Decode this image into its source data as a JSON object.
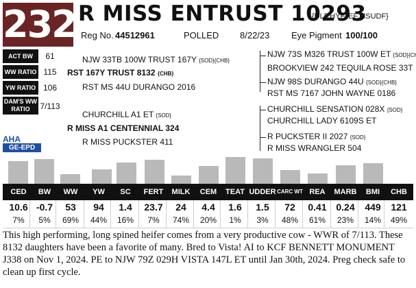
{
  "lot": "232",
  "name": "R MISS ENTRUST 10293",
  "codes": "{DLF,HYF,IEF,MSUDF}",
  "reg_label": "Reg No.",
  "reg_no": "44512961",
  "polled": "POLLED",
  "birth_date": "8/22/23",
  "eye_label": "Eye Pigment",
  "eye_value": "100/100",
  "side_stats": [
    {
      "label": "ACT BW",
      "value": "61"
    },
    {
      "label": "WW RATIO",
      "value": "115"
    },
    {
      "label": "YW RATIO",
      "value": "106"
    },
    {
      "label": "DAM'S WW RATIO",
      "value": "7/113"
    }
  ],
  "pedigree": {
    "sire_sire": "NJW 33TB 100W TRUST 167Y",
    "sire_sire_codes": "{SOD}{CHB}",
    "sire": "RST 167Y TRUST 8132",
    "sire_codes": "{CHB}",
    "sire_dam": "RST MS 44U DURANGO 2016",
    "dam_sire": "CHURCHILL A1 ET",
    "dam_sire_codes": "{SOD}",
    "dam": "R MISS A1 CENTENNIAL 324",
    "dam_dam": "R MISS PUCKSTER 411",
    "right": {
      "g1": "NJW 73S M326 TRUST 100W ET",
      "g1_codes": "{SOD}{CHB}",
      "g2": "BROOKVIEW 242 TEQUILA ROSE 33T",
      "g3": "NJW 98S DURANGO 44U",
      "g3_codes": "{SOD}{CHB}",
      "g4": "RST MS 7167 JOHN WAYNE 0186",
      "g5": "CHURCHILL SENSATION 028X",
      "g5_codes": "{SOD}",
      "g6": "CHURCHILL LADY 6109S ET",
      "g7": "R PUCKSTER II 2027",
      "g7_codes": "{SOD}",
      "g8": "R MISS WRANGLER 504"
    }
  },
  "logo": {
    "aha": "AHA",
    "ge": "GE-EPD"
  },
  "epd": [
    {
      "label": "CED",
      "value": "10.6",
      "pct": "7%"
    },
    {
      "label": "BW",
      "value": "-0.7",
      "pct": "5%"
    },
    {
      "label": "WW",
      "value": "53",
      "pct": "69%"
    },
    {
      "label": "YW",
      "value": "94",
      "pct": "44%"
    },
    {
      "label": "SC",
      "value": "1.4",
      "pct": "16%"
    },
    {
      "label": "FERT",
      "value": "23.7",
      "pct": "7%"
    },
    {
      "label": "MILK",
      "value": "24",
      "pct": "74%"
    },
    {
      "label": "CEM",
      "value": "4.4",
      "pct": "20%"
    },
    {
      "label": "TEAT",
      "value": "1.6",
      "pct": "1%"
    },
    {
      "label": "UDDER",
      "value": "1.5",
      "pct": "3%"
    },
    {
      "label": "CARC WT",
      "value": "72",
      "pct": "48%"
    },
    {
      "label": "REA",
      "value": "0.41",
      "pct": "61%"
    },
    {
      "label": "MARB",
      "value": "0.24",
      "pct": "23%"
    },
    {
      "label": "BMI",
      "value": "449",
      "pct": "14%"
    },
    {
      "label": "CHB",
      "value": "121",
      "pct": "49%"
    }
  ],
  "description": "This high performing, long spined heifer comes from a very productive cow - WWR of 7/113. These 8132 daughters have been a favorite of many. Bred to Vista! AI to KCF BENNETT MONUMENT J338 on Nov 1, 2024. PE to NJW 79Z 029H VISTA 147L ET until Jan 30th, 2024. Preg check safe to clean up first cycle."
}
